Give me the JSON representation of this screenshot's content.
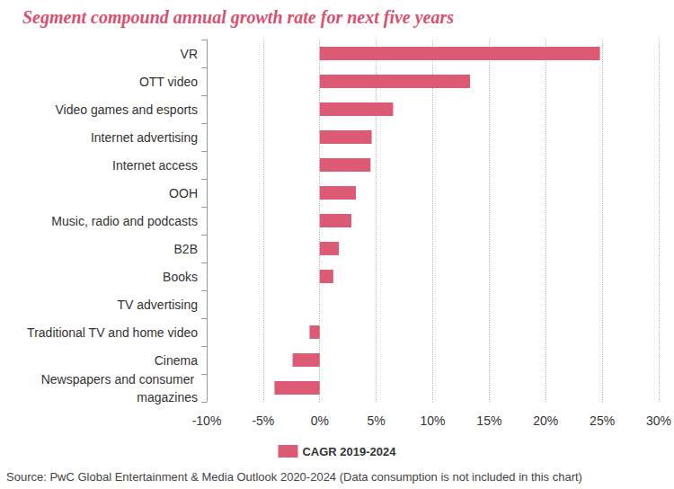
{
  "chart_data": {
    "type": "bar",
    "orientation": "horizontal",
    "title": "Segment compound annual growth rate for next five years",
    "source": "Source: PwC Global Entertainment & Media Outlook 2020-2024 (Data consumption is not included in this chart)",
    "categories": [
      "VR",
      "OTT video",
      "Video games and esports",
      "Internet advertising",
      "Internet access",
      "OOH",
      "Music, radio and podcasts",
      "B2B",
      "Books",
      "TV advertising",
      "Traditional TV and home video",
      "Cinema",
      "Newspapers and consumer magazines"
    ],
    "series": [
      {
        "name": "CAGR 2019-2024",
        "color": "#dc5a74",
        "values": [
          24.8,
          13.3,
          6.5,
          4.6,
          4.5,
          3.2,
          2.8,
          1.7,
          1.2,
          0,
          -0.9,
          -2.4,
          -4.0
        ]
      }
    ],
    "xlim": [
      -10,
      30
    ],
    "xticks": [
      {
        "value": -10,
        "label": "-10%"
      },
      {
        "value": -5,
        "label": "-5%"
      },
      {
        "value": 0,
        "label": "0%"
      },
      {
        "value": 5,
        "label": "5%"
      },
      {
        "value": 10,
        "label": "10%"
      },
      {
        "value": 15,
        "label": "15%"
      },
      {
        "value": 20,
        "label": "20%"
      },
      {
        "value": 25,
        "label": "25%"
      },
      {
        "value": 30,
        "label": "30%"
      }
    ],
    "grid": true,
    "legend": "bottom",
    "data_labels": false
  }
}
